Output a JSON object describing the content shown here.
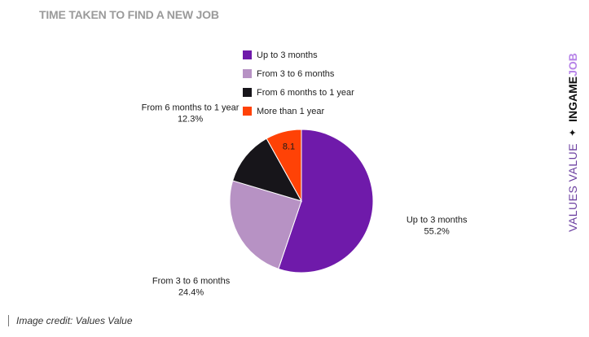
{
  "chart_data": {
    "type": "pie",
    "title": "TIME TAKEN TO FIND A NEW JOB",
    "categories": [
      "Up to 3 months",
      "From 3 to 6 months",
      "From 6 months to 1 year",
      "More than 1 year"
    ],
    "values": [
      55.2,
      24.4,
      12.3,
      8.1
    ],
    "value_labels": [
      "55.2%",
      "24.4%",
      "12.3%",
      "8.1"
    ],
    "colors": [
      "#6f1aaa",
      "#b792c4",
      "#17151a",
      "#ff4206"
    ],
    "legend_position": "top"
  },
  "branding": {
    "part1": "VALUES VALUE",
    "separator": "✦",
    "part2": "INGAME",
    "part3": "JOB"
  },
  "credit": "Image credit: Values Value"
}
